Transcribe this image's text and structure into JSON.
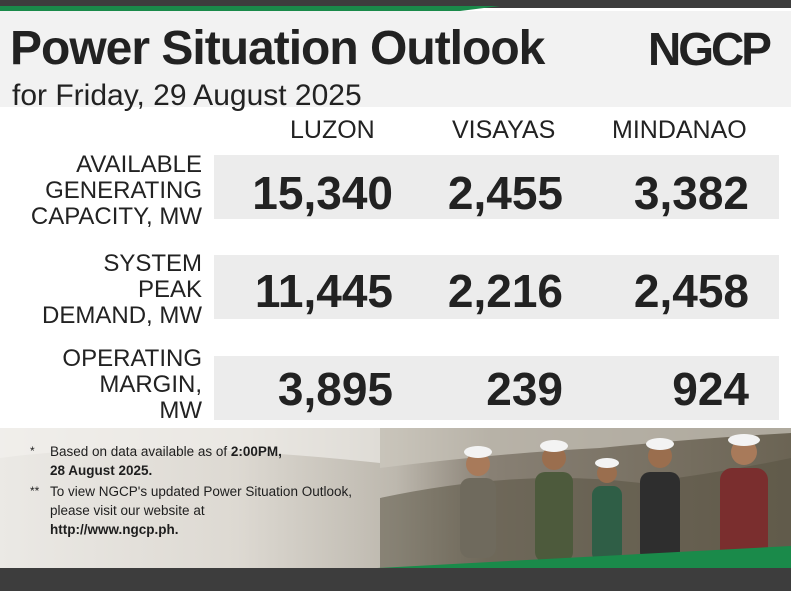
{
  "header": {
    "title": "Power Situation Outlook",
    "subtitle": "for Friday, 29 August 2025",
    "logo_text": "NGCP"
  },
  "table": {
    "columns": [
      "LUZON",
      "VISAYAS",
      "MINDANAO"
    ],
    "rows": [
      {
        "label_lines": [
          "AVAILABLE",
          "GENERATING",
          "CAPACITY, MW"
        ],
        "values": [
          "15,340",
          "2,455",
          "3,382"
        ]
      },
      {
        "label_lines": [
          "SYSTEM",
          "PEAK",
          "DEMAND, MW"
        ],
        "values": [
          "11,445",
          "2,216",
          "2,458"
        ]
      },
      {
        "label_lines": [
          "OPERATING",
          "MARGIN,",
          "MW"
        ],
        "values": [
          "3,895",
          "239",
          "924"
        ]
      }
    ]
  },
  "notes": [
    {
      "mark": "*",
      "text": "Based on data available as of ",
      "bold1": "2:00PM,",
      "line2_bold": "28 August 2025."
    },
    {
      "mark": "**",
      "text": "To view NGCP's updated Power Situation Outlook, please visit our website at ",
      "link": "http://www.ngcp.ph."
    }
  ],
  "colors": {
    "green": "#1a8a4a",
    "dark_bar": "#3d3d3d",
    "header_bg": "#f2f2f2",
    "row_bg": "#ececec",
    "text": "#222222"
  }
}
